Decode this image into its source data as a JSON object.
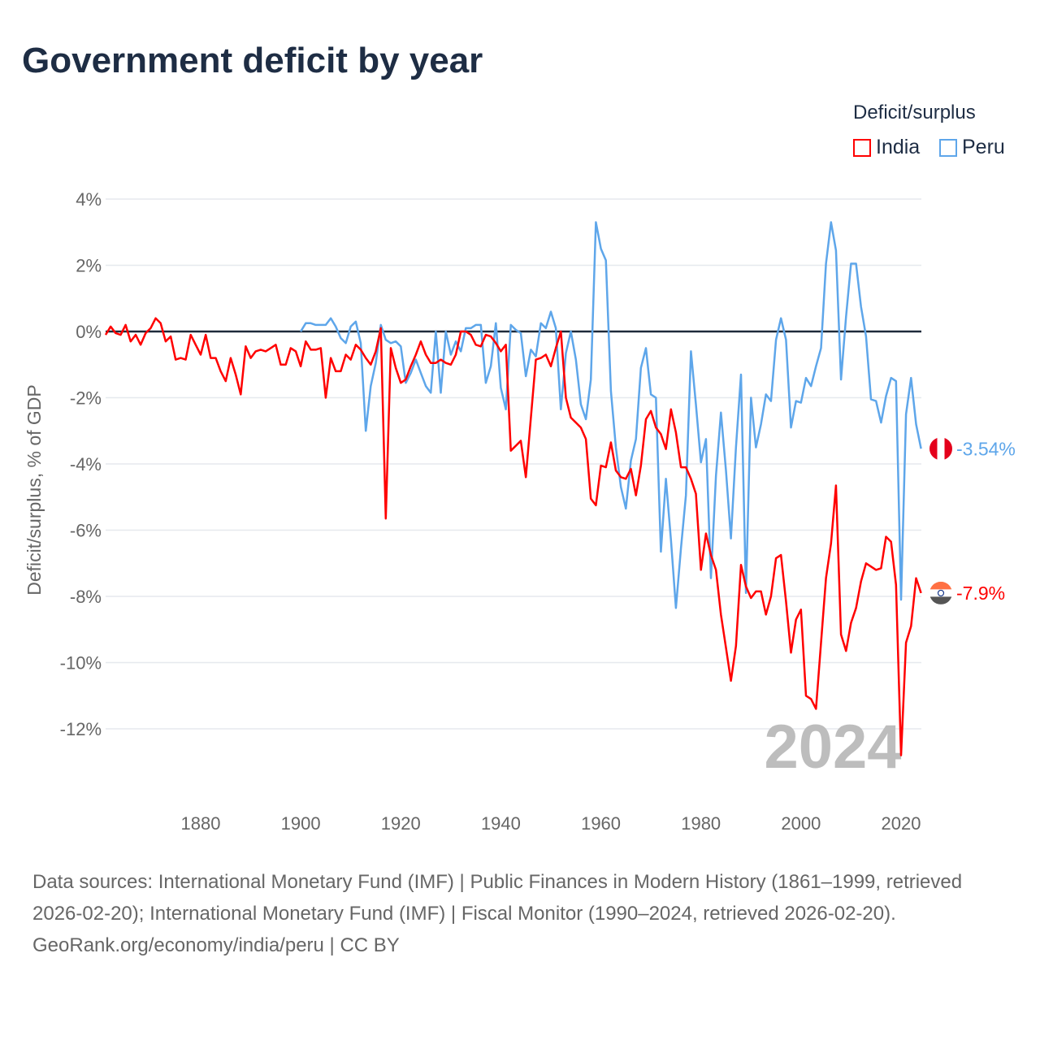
{
  "title": "Government deficit by year",
  "legend": {
    "title": "Deficit/surplus",
    "items": [
      {
        "label": "India",
        "color": "#ff0000"
      },
      {
        "label": "Peru",
        "color": "#5ea6ea"
      }
    ]
  },
  "footer": {
    "sources": "Data sources: International Monetary Fund (IMF) | Public Finances in Modern History (1861–1999, retrieved 2026-02-20); International Monetary Fund (IMF) | Fiscal Monitor (1990–2024, retrieved 2026-02-20).",
    "credit": "GeoRank.org/economy/india/peru | CC BY"
  },
  "chart_data": {
    "type": "line",
    "title": "Government deficit by year",
    "xlabel": "",
    "ylabel": "Deficit/surplus, % of GDP",
    "xlim": [
      1861,
      2024
    ],
    "ylim": [
      -13.5,
      4.3
    ],
    "yticks": [
      4,
      2,
      0,
      -2,
      -4,
      -6,
      -8,
      -10,
      -12
    ],
    "ytick_labels": [
      "4%",
      "2%",
      "0%",
      "-2%",
      "-4%",
      "-6%",
      "-8%",
      "-10%",
      "-12%"
    ],
    "xticks": [
      1880,
      1900,
      1920,
      1940,
      1960,
      1980,
      2000,
      2020
    ],
    "xtick_labels": [
      "1880",
      "1900",
      "1920",
      "1940",
      "1960",
      "1980",
      "2000",
      "2020"
    ],
    "grid": true,
    "year_label": "2024",
    "series": [
      {
        "name": "India",
        "color": "#ff0000",
        "start_year": 1861,
        "end_label": "-7.9%",
        "values": [
          -0.1,
          0.15,
          -0.05,
          -0.1,
          0.2,
          -0.3,
          -0.1,
          -0.4,
          -0.05,
          0.1,
          0.4,
          0.25,
          -0.3,
          -0.15,
          -0.85,
          -0.8,
          -0.85,
          -0.1,
          -0.4,
          -0.7,
          -0.1,
          -0.8,
          -0.8,
          -1.2,
          -1.5,
          -0.8,
          -1.3,
          -1.9,
          -0.45,
          -0.8,
          -0.6,
          -0.55,
          -0.6,
          -0.5,
          -0.4,
          -1.0,
          -1.0,
          -0.5,
          -0.6,
          -1.05,
          -0.3,
          -0.55,
          -0.55,
          -0.5,
          -2.0,
          -0.8,
          -1.2,
          -1.2,
          -0.7,
          -0.85,
          -0.4,
          -0.55,
          -0.8,
          -1.0,
          -0.6,
          0.1,
          -5.65,
          -0.5,
          -1.1,
          -1.55,
          -1.45,
          -1.05,
          -0.7,
          -0.3,
          -0.7,
          -0.95,
          -0.95,
          -0.85,
          -0.95,
          -1.0,
          -0.7,
          0,
          0,
          -0.1,
          -0.4,
          -0.45,
          -0.1,
          -0.15,
          -0.35,
          -0.6,
          -0.4,
          -3.6,
          -3.45,
          -3.3,
          -4.4,
          -2.6,
          -0.85,
          -0.8,
          -0.7,
          -1.05,
          -0.5,
          0,
          -2.0,
          -2.6,
          -2.75,
          -2.9,
          -3.25,
          -5.05,
          -5.25,
          -4.05,
          -4.1,
          -3.35,
          -4.2,
          -4.4,
          -4.45,
          -4.15,
          -4.95,
          -4.05,
          -2.65,
          -2.4,
          -2.9,
          -3.1,
          -3.55,
          -2.35,
          -3.05,
          -4.1,
          -4.1,
          -4.45,
          -4.9,
          -7.2,
          -6.1,
          -6.75,
          -7.2,
          -8.55,
          -9.55,
          -10.55,
          -9.5,
          -7.05,
          -7.7,
          -8.05,
          -7.85,
          -7.85,
          -8.55,
          -8.0,
          -6.85,
          -6.75,
          -8.15,
          -9.7,
          -8.7,
          -8.4,
          -11.0,
          -11.1,
          -11.4,
          -9.4,
          -7.45,
          -6.4,
          -4.65,
          -9.15,
          -9.65,
          -8.8,
          -8.35,
          -7.55,
          -7.0,
          -7.1,
          -7.2,
          -7.15,
          -6.2,
          -6.35,
          -7.65,
          -12.8,
          -9.4,
          -8.9,
          -7.45,
          -7.9
        ]
      },
      {
        "name": "Peru",
        "color": "#5ea6ea",
        "start_year": 1900,
        "end_label": "-3.54%",
        "values": [
          0,
          0.25,
          0.25,
          0.2,
          0.2,
          0.2,
          0.4,
          0.15,
          -0.2,
          -0.35,
          0.15,
          0.3,
          -0.35,
          -3.0,
          -1.65,
          -0.95,
          0.2,
          -0.25,
          -0.35,
          -0.3,
          -0.45,
          -1.55,
          -1.25,
          -0.85,
          -1.25,
          -1.65,
          -1.85,
          0,
          -1.85,
          0,
          -0.7,
          -0.3,
          -0.6,
          0.1,
          0.1,
          0.2,
          0.2,
          -1.55,
          -1.05,
          0.25,
          -1.7,
          -2.35,
          0.2,
          0.05,
          -0.05,
          -1.35,
          -0.55,
          -0.75,
          0.25,
          0.1,
          0.6,
          0.1,
          -2.35,
          -0.65,
          0,
          -0.85,
          -2.2,
          -2.65,
          -1.45,
          3.3,
          2.5,
          2.15,
          -1.8,
          -3.5,
          -4.7,
          -5.35,
          -3.9,
          -3.25,
          -1.1,
          -0.5,
          -1.9,
          -2.0,
          -6.65,
          -4.45,
          -6.3,
          -8.35,
          -6.55,
          -4.95,
          -0.6,
          -2.2,
          -3.95,
          -3.25,
          -7.45,
          -4.35,
          -2.45,
          -4.2,
          -6.25,
          -3.5,
          -1.3,
          -7.9,
          -2.0,
          -3.5,
          -2.8,
          -1.9,
          -2.1,
          -0.25,
          0.4,
          -0.25,
          -2.9,
          -2.1,
          -2.15,
          -1.4,
          -1.65,
          -1.05,
          -0.5,
          2.05,
          3.3,
          2.45,
          -1.45,
          0.45,
          2.05,
          2.05,
          0.75,
          -0.15,
          -2.05,
          -2.1,
          -2.75,
          -1.95,
          -1.4,
          -1.5,
          -8.1,
          -2.5,
          -1.4,
          -2.8,
          -3.54
        ]
      }
    ]
  }
}
